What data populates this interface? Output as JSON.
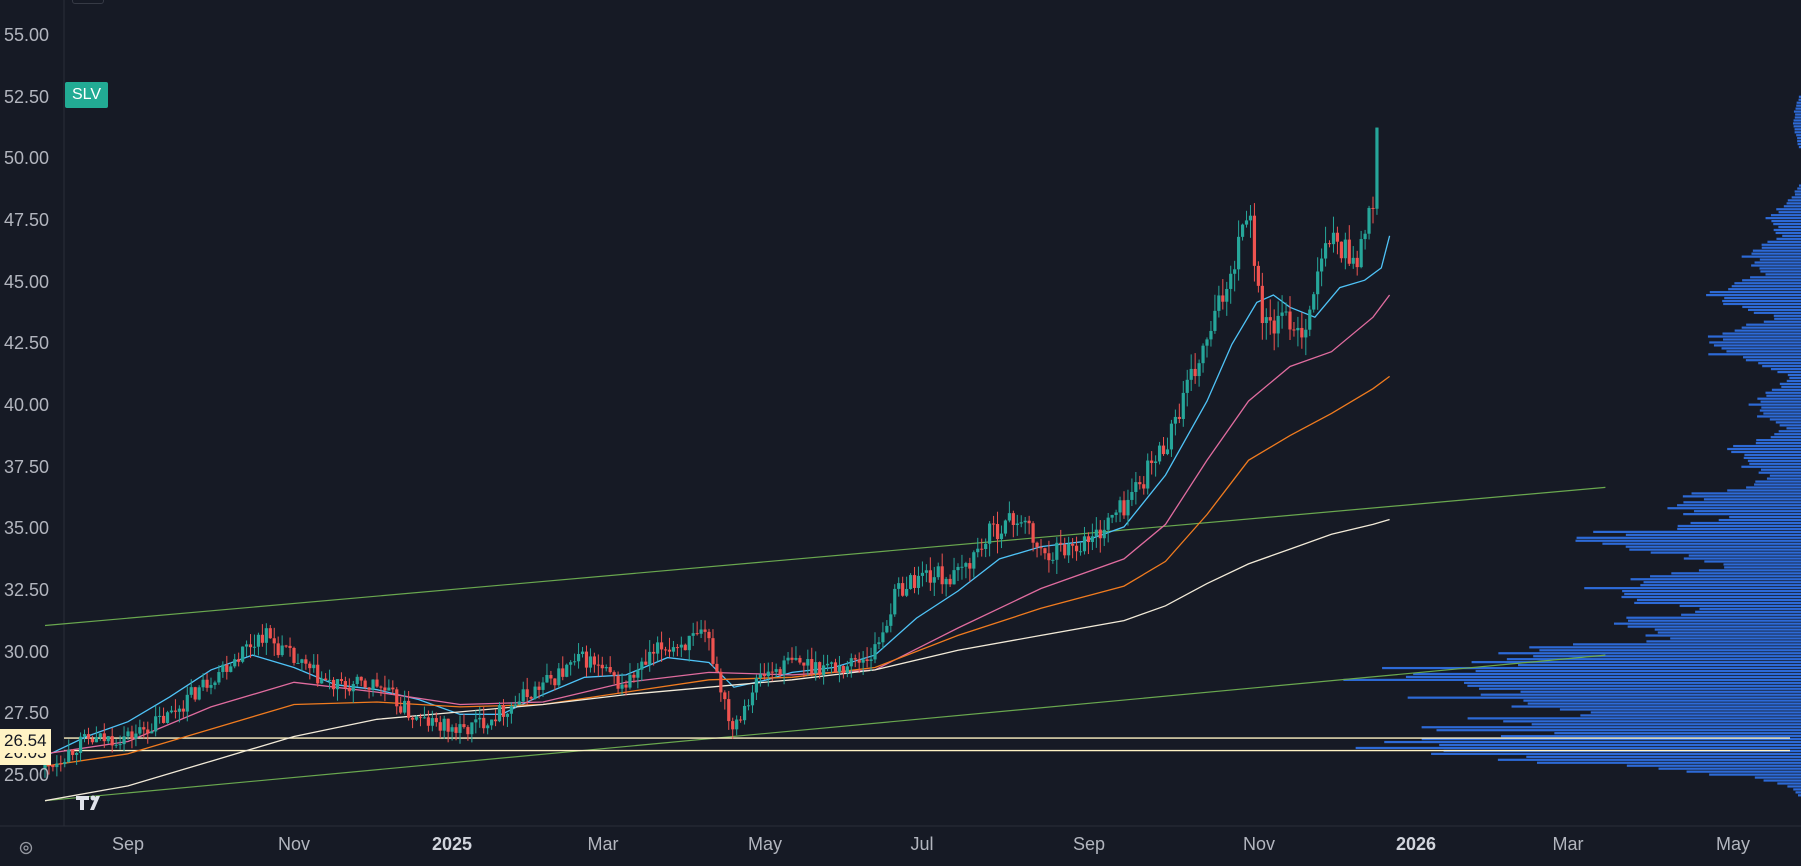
{
  "ticker": "SLV",
  "price_tags": {
    "last": "26.54",
    "prev": "26.03"
  },
  "chart_data": {
    "type": "candlestick",
    "title": "",
    "y_ticks": [
      "55.00",
      "52.50",
      "50.00",
      "47.50",
      "45.00",
      "42.50",
      "40.00",
      "37.50",
      "35.00",
      "32.50",
      "30.00",
      "27.50",
      "25.00"
    ],
    "x_ticks": [
      {
        "label": "Sep",
        "bold": false
      },
      {
        "label": "Nov",
        "bold": false
      },
      {
        "label": "2025",
        "bold": true
      },
      {
        "label": "Mar",
        "bold": false
      },
      {
        "label": "May",
        "bold": false
      },
      {
        "label": "Jul",
        "bold": false
      },
      {
        "label": "Sep",
        "bold": false
      },
      {
        "label": "Nov",
        "bold": false
      },
      {
        "label": "2026",
        "bold": true
      },
      {
        "label": "Mar",
        "bold": false
      },
      {
        "label": "May",
        "bold": false
      }
    ],
    "ylim": [
      23.5,
      56.5
    ],
    "close_path": [
      [
        "2024-08-01",
        25.3
      ],
      [
        "2024-08-15",
        26.4
      ],
      [
        "2024-09-01",
        26.6
      ],
      [
        "2024-09-15",
        27.4
      ],
      [
        "2024-10-01",
        29.0
      ],
      [
        "2024-10-20",
        30.8
      ],
      [
        "2024-11-01",
        29.6
      ],
      [
        "2024-11-15",
        28.6
      ],
      [
        "2024-12-01",
        28.7
      ],
      [
        "2024-12-15",
        27.3
      ],
      [
        "2025-01-01",
        26.8
      ],
      [
        "2025-01-15",
        27.6
      ],
      [
        "2025-02-01",
        28.8
      ],
      [
        "2025-02-15",
        29.8
      ],
      [
        "2025-03-01",
        28.6
      ],
      [
        "2025-03-15",
        30.2
      ],
      [
        "2025-04-01",
        30.6
      ],
      [
        "2025-04-10",
        27.0
      ],
      [
        "2025-04-20",
        29.0
      ],
      [
        "2025-05-01",
        29.6
      ],
      [
        "2025-05-20",
        29.4
      ],
      [
        "2025-06-01",
        30.0
      ],
      [
        "2025-06-10",
        32.6
      ],
      [
        "2025-06-20",
        33.2
      ],
      [
        "2025-07-01",
        33.0
      ],
      [
        "2025-07-15",
        35.0
      ],
      [
        "2025-07-25",
        35.5
      ],
      [
        "2025-08-01",
        34.0
      ],
      [
        "2025-08-20",
        34.6
      ],
      [
        "2025-09-01",
        36.0
      ],
      [
        "2025-09-15",
        38.3
      ],
      [
        "2025-10-01",
        42.5
      ],
      [
        "2025-10-10",
        45.5
      ],
      [
        "2025-10-16",
        48.3
      ],
      [
        "2025-10-22",
        43.2
      ],
      [
        "2025-11-01",
        43.5
      ],
      [
        "2025-11-05",
        43.0
      ],
      [
        "2025-11-15",
        46.8
      ],
      [
        "2025-11-25",
        46.0
      ],
      [
        "2025-12-01",
        48.0
      ],
      [
        "2025-12-03",
        52.5
      ]
    ],
    "moving_averages": [
      {
        "color": "#4fc3f7",
        "values": [
          [
            0,
            25.8
          ],
          [
            0.5,
            26.6
          ],
          [
            1,
            27.2
          ],
          [
            1.5,
            28.2
          ],
          [
            2,
            29.3
          ],
          [
            2.5,
            29.9
          ],
          [
            3,
            29.4
          ],
          [
            3.5,
            28.7
          ],
          [
            4,
            28.5
          ],
          [
            4.5,
            28.1
          ],
          [
            5,
            27.5
          ],
          [
            5.5,
            27.5
          ],
          [
            6,
            28.3
          ],
          [
            6.5,
            29.0
          ],
          [
            7,
            29.1
          ],
          [
            7.5,
            29.8
          ],
          [
            8,
            29.6
          ],
          [
            8.3,
            28.6
          ],
          [
            8.7,
            28.9
          ],
          [
            9,
            29.2
          ],
          [
            9.5,
            29.4
          ],
          [
            10,
            29.9
          ],
          [
            10.5,
            31.4
          ],
          [
            11,
            32.5
          ],
          [
            11.5,
            33.8
          ],
          [
            12,
            34.3
          ],
          [
            12.5,
            34.5
          ],
          [
            13,
            35.1
          ],
          [
            13.5,
            37.2
          ],
          [
            14,
            40.2
          ],
          [
            14.3,
            42.5
          ],
          [
            14.6,
            44.2
          ],
          [
            14.8,
            44.5
          ],
          [
            15,
            44.0
          ],
          [
            15.3,
            43.6
          ],
          [
            15.6,
            44.8
          ],
          [
            15.9,
            45.1
          ],
          [
            16.1,
            45.6
          ],
          [
            16.2,
            46.9
          ]
        ]
      },
      {
        "color": "#e06c9f",
        "values": [
          [
            0,
            25.9
          ],
          [
            1,
            26.4
          ],
          [
            2,
            27.8
          ],
          [
            3,
            28.8
          ],
          [
            4,
            28.4
          ],
          [
            5,
            27.9
          ],
          [
            6,
            28.0
          ],
          [
            7,
            28.8
          ],
          [
            8,
            29.2
          ],
          [
            9,
            29.1
          ],
          [
            10,
            29.3
          ],
          [
            11,
            31.0
          ],
          [
            12,
            32.6
          ],
          [
            13,
            33.8
          ],
          [
            13.5,
            35.2
          ],
          [
            14,
            37.8
          ],
          [
            14.5,
            40.2
          ],
          [
            15,
            41.6
          ],
          [
            15.5,
            42.2
          ],
          [
            16,
            43.6
          ],
          [
            16.2,
            44.5
          ]
        ]
      },
      {
        "color": "#f07b1f",
        "values": [
          [
            0,
            25.4
          ],
          [
            1,
            25.9
          ],
          [
            2,
            26.9
          ],
          [
            3,
            27.9
          ],
          [
            4,
            28.0
          ],
          [
            5,
            27.8
          ],
          [
            6,
            27.9
          ],
          [
            7,
            28.4
          ],
          [
            8,
            28.9
          ],
          [
            9,
            29.0
          ],
          [
            10,
            29.4
          ],
          [
            11,
            30.7
          ],
          [
            12,
            31.8
          ],
          [
            13,
            32.7
          ],
          [
            13.5,
            33.7
          ],
          [
            14,
            35.6
          ],
          [
            14.5,
            37.8
          ],
          [
            15,
            38.8
          ],
          [
            15.5,
            39.7
          ],
          [
            16,
            40.7
          ],
          [
            16.2,
            41.2
          ]
        ]
      },
      {
        "color": "#f2ead8",
        "values": [
          [
            0,
            24.0
          ],
          [
            1,
            24.6
          ],
          [
            2,
            25.6
          ],
          [
            3,
            26.6
          ],
          [
            4,
            27.3
          ],
          [
            5,
            27.6
          ],
          [
            6,
            27.9
          ],
          [
            7,
            28.3
          ],
          [
            8,
            28.6
          ],
          [
            9,
            28.9
          ],
          [
            10,
            29.3
          ],
          [
            11,
            30.1
          ],
          [
            12,
            30.7
          ],
          [
            13,
            31.3
          ],
          [
            13.5,
            31.9
          ],
          [
            14,
            32.8
          ],
          [
            14.5,
            33.6
          ],
          [
            15,
            34.2
          ],
          [
            15.5,
            34.8
          ],
          [
            16,
            35.2
          ],
          [
            16.2,
            35.4
          ]
        ]
      }
    ],
    "trendlines": [
      {
        "color": "#6aa84f",
        "from": [
          0,
          31.1
        ],
        "to": [
          18.8,
          36.7
        ]
      },
      {
        "color": "#6aa84f",
        "from": [
          0,
          24.0
        ],
        "to": [
          18.8,
          29.9
        ]
      }
    ],
    "horizontal_lines": [
      {
        "value": 26.54,
        "color": "#fff3c4"
      },
      {
        "value": 26.03,
        "color": "#fff3c4"
      }
    ],
    "volume_profile": {
      "color": "#2e6fe0"
    }
  }
}
